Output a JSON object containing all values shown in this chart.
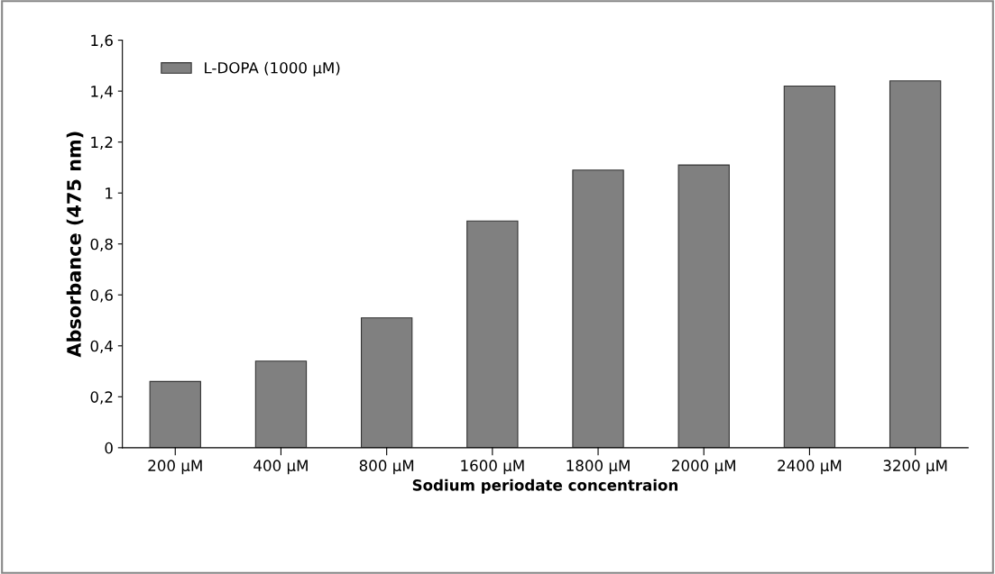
{
  "chart_data": {
    "type": "bar",
    "xlabel": "Sodium periodate concentraion",
    "ylabel": "Absorbance (475 nm)",
    "categories": [
      "200 µM",
      "400 µM",
      "800 µM",
      "1600 µM",
      "1800 µM",
      "2000 µM",
      "2400 µM",
      "3200 µM"
    ],
    "series": [
      {
        "name": "L-DOPA (1000 µM)",
        "color": "#808080",
        "values": [
          0.26,
          0.34,
          0.51,
          0.89,
          1.09,
          1.11,
          1.42,
          1.44
        ]
      }
    ],
    "ylim": [
      0,
      1.6
    ],
    "yticks": [
      0,
      {
        "value": 0.2,
        "label": "0,2"
      },
      {
        "value": 0.4,
        "label": "0,4"
      },
      {
        "value": 0.6,
        "label": "0,6"
      },
      {
        "value": 0.8,
        "label": "0,8"
      },
      1,
      {
        "value": 1.2,
        "label": "1,2"
      },
      {
        "value": 1.4,
        "label": "1,4"
      },
      {
        "value": 1.6,
        "label": "1,6"
      }
    ],
    "grid": false,
    "legend": "top left"
  }
}
